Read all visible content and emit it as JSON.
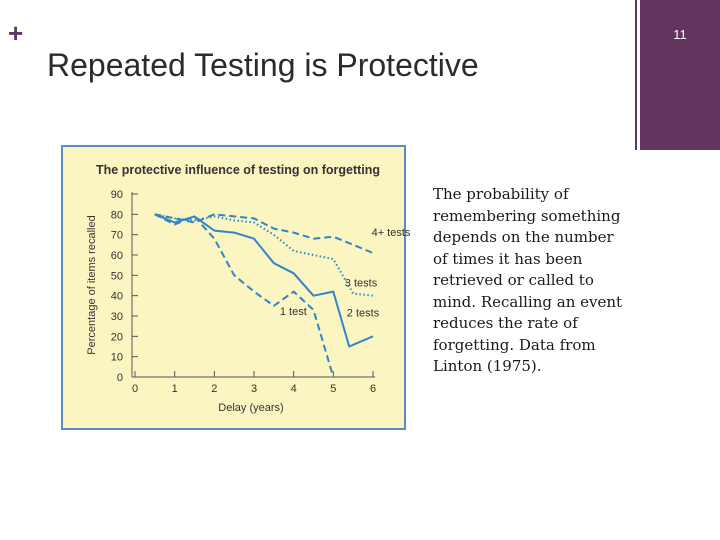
{
  "slide": {
    "plus": "+",
    "title": "Repeated Testing is Protective",
    "page_number": "11",
    "caption": "The probability of remembering something depends on the number of times it has been retrieved or called to mind. Recalling an event reduces the rate of forgetting. Data from Linton (1975)."
  },
  "colors": {
    "accent_purple": "#63345e",
    "figure_background": "#fbf5c2",
    "figure_border": "#5b8bc4",
    "series_blue": "#2f86c7"
  },
  "chart_data": {
    "type": "line",
    "title": "The protective influence of testing on forgetting",
    "xlabel": "Delay (years)",
    "ylabel": "Percentage of items recalled",
    "xlim": [
      0,
      6
    ],
    "ylim": [
      0,
      90
    ],
    "xticks": [
      "0",
      "1",
      "2",
      "3",
      "4",
      "5",
      "6"
    ],
    "yticks": [
      "0",
      "10",
      "20",
      "30",
      "40",
      "50",
      "60",
      "70",
      "80",
      "90"
    ],
    "grid": false,
    "series": [
      {
        "name": "4+ tests",
        "style": "dashed",
        "x": [
          0.5,
          1.0,
          1.5,
          2.0,
          2.5,
          3.0,
          3.5,
          4.0,
          4.5,
          5.0,
          5.5,
          6.0
        ],
        "values": [
          80,
          78,
          76,
          80,
          79,
          78,
          73,
          71,
          68,
          69,
          65,
          61
        ]
      },
      {
        "name": "3 tests",
        "style": "dotted",
        "x": [
          0.5,
          1.0,
          1.5,
          2.0,
          2.5,
          3.0,
          3.5,
          4.0,
          4.5,
          5.0,
          5.5,
          6.0
        ],
        "values": [
          80,
          78,
          77,
          79,
          77,
          76,
          70,
          62,
          60,
          58,
          41,
          40
        ]
      },
      {
        "name": "2 tests",
        "style": "solid",
        "x": [
          0.5,
          1.0,
          1.5,
          2.0,
          2.5,
          3.0,
          3.5,
          4.0,
          4.5,
          5.0,
          5.4,
          6.0
        ],
        "values": [
          80,
          76,
          79,
          72,
          71,
          68,
          56,
          51,
          40,
          42,
          15,
          20
        ]
      },
      {
        "name": "1 test",
        "style": "dashed",
        "x": [
          0.5,
          1.0,
          1.5,
          2.0,
          2.5,
          3.0,
          3.5,
          4.0,
          4.5,
          5.0
        ],
        "values": [
          80,
          75,
          79,
          68,
          50,
          42,
          35,
          42,
          33,
          0
        ]
      }
    ]
  }
}
